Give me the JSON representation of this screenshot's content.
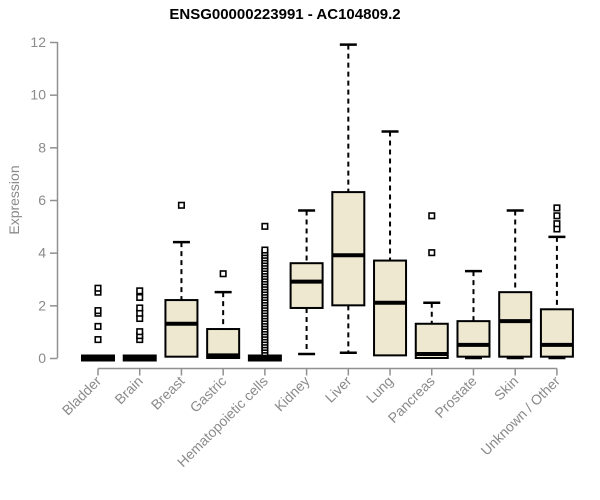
{
  "title": "ENSG00000223991 - AC104809.2",
  "chart_data": {
    "type": "boxplot",
    "title": "ENSG00000223991 - AC104809.2",
    "xlabel": "",
    "ylabel": "Expression",
    "ylim": [
      0,
      12
    ],
    "yticks": [
      0,
      2,
      4,
      6,
      8,
      10,
      12
    ],
    "categories": [
      "Bladder",
      "Brain",
      "Breast",
      "Gastric",
      "Hematopoietic cells",
      "Kidney",
      "Liver",
      "Lung",
      "Pancreas",
      "Prostate",
      "Skin",
      "Unknown / Other"
    ],
    "boxes": [
      {
        "category": "Bladder",
        "low": 0,
        "q1": 0,
        "median": 0,
        "q3": 0,
        "high": 0,
        "outliers": [
          0.7,
          1.2,
          1.7,
          1.8,
          2.5,
          2.65
        ]
      },
      {
        "category": "Brain",
        "low": 0,
        "q1": 0,
        "median": 0,
        "q3": 0,
        "high": 0,
        "outliers": [
          0.7,
          0.85,
          1.0,
          1.5,
          1.7,
          1.9,
          2.3,
          2.55
        ]
      },
      {
        "category": "Breast",
        "low": 0.05,
        "q1": 0.05,
        "median": 1.3,
        "q3": 2.2,
        "high": 4.4,
        "outliers": [
          5.8
        ]
      },
      {
        "category": "Gastric",
        "low": 0,
        "q1": 0,
        "median": 0.1,
        "q3": 1.1,
        "high": 2.5,
        "outliers": [
          3.2
        ]
      },
      {
        "category": "Hematopoietic cells",
        "low": 0,
        "q1": 0,
        "median": 0,
        "q3": 0,
        "high": 0,
        "outliers": [
          0.2,
          0.3,
          0.4,
          0.5,
          0.6,
          0.7,
          0.8,
          0.9,
          1.0,
          1.1,
          1.2,
          1.3,
          1.4,
          1.5,
          1.6,
          1.7,
          1.8,
          1.9,
          2.0,
          2.1,
          2.2,
          2.3,
          2.4,
          2.5,
          2.6,
          2.7,
          2.8,
          2.9,
          3.0,
          3.1,
          3.2,
          3.3,
          3.4,
          3.5,
          3.6,
          3.7,
          3.8,
          3.9,
          4.0,
          4.1,
          5.0
        ]
      },
      {
        "category": "Kidney",
        "low": 0.15,
        "q1": 1.9,
        "median": 2.9,
        "q3": 3.6,
        "high": 5.6,
        "outliers": []
      },
      {
        "category": "Liver",
        "low": 0.2,
        "q1": 2.0,
        "median": 3.9,
        "q3": 6.3,
        "high": 11.9,
        "outliers": []
      },
      {
        "category": "Lung",
        "low": 0.1,
        "q1": 0.1,
        "median": 2.1,
        "q3": 3.7,
        "high": 8.6,
        "outliers": []
      },
      {
        "category": "Pancreas",
        "low": 0,
        "q1": 0,
        "median": 0.15,
        "q3": 1.3,
        "high": 2.1,
        "outliers": [
          4.0,
          5.4
        ]
      },
      {
        "category": "Prostate",
        "low": 0,
        "q1": 0.05,
        "median": 0.5,
        "q3": 1.4,
        "high": 3.3,
        "outliers": []
      },
      {
        "category": "Skin",
        "low": 0,
        "q1": 0.05,
        "median": 1.4,
        "q3": 2.5,
        "high": 5.6,
        "outliers": []
      },
      {
        "category": "Unknown / Other",
        "low": 0,
        "q1": 0.05,
        "median": 0.5,
        "q3": 1.85,
        "high": 4.6,
        "outliers": [
          4.9,
          5.1,
          5.4,
          5.7
        ]
      }
    ],
    "layout": {
      "legend": false,
      "grid": false,
      "x_label_rotation_deg": 45
    },
    "colors": {
      "box_fill": "#EDE8CF",
      "box_border": "#000000",
      "median": "#000000",
      "whisker": "#000000",
      "outlier_fill": "#FFFFFF",
      "axis": "#909090",
      "tick_label": "#8A8A8A",
      "title": "#000000",
      "background": "#FFFFFF"
    }
  }
}
